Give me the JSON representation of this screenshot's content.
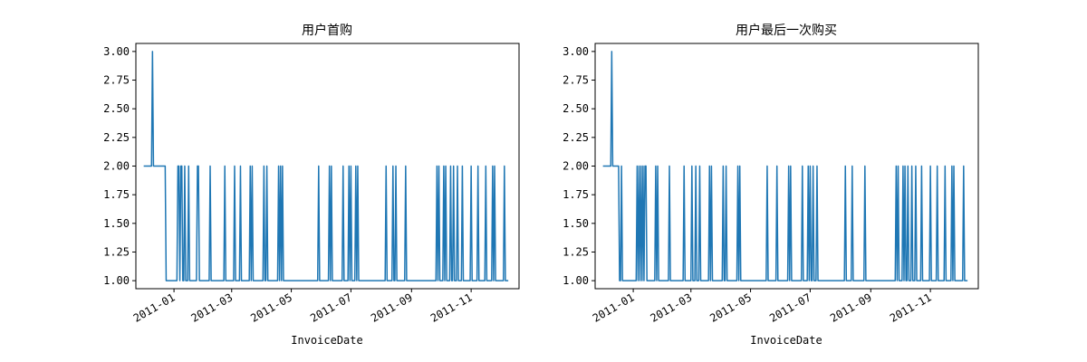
{
  "chart_data": [
    {
      "type": "line",
      "title": "用户首购",
      "xlabel": "InvoiceDate",
      "ylabel": "",
      "ylim": [
        0.93,
        3.07
      ],
      "xlim": [
        "2010-11-23",
        "2011-12-20"
      ],
      "yticks": [
        "1.00",
        "1.25",
        "1.50",
        "1.75",
        "2.00",
        "2.25",
        "2.50",
        "2.75",
        "3.00"
      ],
      "xticks": [
        "2011-01",
        "2011-03",
        "2011-05",
        "2011-07",
        "2011-09",
        "2011-11"
      ],
      "grid": false,
      "color": "#1f77b4",
      "series": [
        {
          "x": [
            "2010-12-01",
            "2010-12-02",
            "2010-12-03",
            "2010-12-04",
            "2010-12-05",
            "2010-12-06",
            "2010-12-07",
            "2010-12-08",
            "2010-12-09",
            "2010-12-10",
            "2010-12-11",
            "2010-12-12",
            "2010-12-13",
            "2010-12-14",
            "2010-12-15",
            "2010-12-16",
            "2010-12-17",
            "2010-12-18",
            "2010-12-19",
            "2010-12-20",
            "2010-12-21",
            "2010-12-22",
            "2010-12-23",
            "2011-01-05",
            "2011-01-06",
            "2011-01-08",
            "2011-01-09",
            "2011-01-12",
            "2011-01-16",
            "2011-01-25",
            "2011-01-26",
            "2011-02-07",
            "2011-02-22",
            "2011-03-04",
            "2011-03-10",
            "2011-03-20",
            "2011-03-22",
            "2011-04-03",
            "2011-04-06",
            "2011-04-18",
            "2011-04-20",
            "2011-04-22",
            "2011-05-29",
            "2011-06-09",
            "2011-06-11",
            "2011-06-23",
            "2011-06-29",
            "2011-07-01",
            "2011-07-06",
            "2011-07-08",
            "2011-08-06",
            "2011-08-13",
            "2011-08-16",
            "2011-08-26",
            "2011-09-27",
            "2011-09-29",
            "2011-10-04",
            "2011-10-06",
            "2011-10-11",
            "2011-10-14",
            "2011-10-18",
            "2011-10-23",
            "2011-11-01",
            "2011-11-08",
            "2011-11-16",
            "2011-11-23",
            "2011-11-25",
            "2011-12-05"
          ],
          "values": [
            2,
            2,
            2,
            2,
            2,
            2,
            2,
            2,
            2,
            3,
            2,
            2,
            2,
            2,
            2,
            2,
            2,
            2,
            2,
            2,
            2,
            2,
            2,
            2,
            2,
            2,
            2,
            2,
            2,
            2,
            2,
            2,
            2,
            2,
            2,
            2,
            2,
            2,
            2,
            2,
            2,
            2,
            2,
            2,
            2,
            2,
            2,
            2,
            2,
            2,
            2,
            2,
            2,
            2,
            2,
            2,
            2,
            2,
            2,
            2,
            2,
            2,
            2,
            2,
            2,
            2,
            2,
            2
          ],
          "baseline": 1,
          "range": [
            "2010-12-01",
            "2011-12-09"
          ]
        }
      ]
    },
    {
      "type": "line",
      "title": "用户最后一次购买",
      "xlabel": "InvoiceDate",
      "ylabel": "",
      "ylim": [
        0.93,
        3.07
      ],
      "xlim": [
        "2010-11-23",
        "2011-12-20"
      ],
      "yticks": [
        "1.00",
        "1.25",
        "1.50",
        "1.75",
        "2.00",
        "2.25",
        "2.50",
        "2.75",
        "3.00"
      ],
      "xticks": [
        "2011-01",
        "2011-03",
        "2011-05",
        "2011-07",
        "2011-09",
        "2011-11"
      ],
      "grid": false,
      "color": "#1f77b4",
      "series": [
        {
          "x": [
            "2010-12-01",
            "2010-12-02",
            "2010-12-03",
            "2010-12-04",
            "2010-12-05",
            "2010-12-06",
            "2010-12-07",
            "2010-12-08",
            "2010-12-09",
            "2010-12-10",
            "2010-12-11",
            "2010-12-12",
            "2010-12-13",
            "2010-12-14",
            "2010-12-15",
            "2010-12-16",
            "2010-12-17",
            "2010-12-20",
            "2011-01-05",
            "2011-01-07",
            "2011-01-09",
            "2011-01-11",
            "2011-01-13",
            "2011-01-14",
            "2011-01-24",
            "2011-01-26",
            "2011-02-07",
            "2011-02-22",
            "2011-03-02",
            "2011-03-06",
            "2011-03-10",
            "2011-03-20",
            "2011-03-22",
            "2011-04-03",
            "2011-04-06",
            "2011-04-18",
            "2011-04-20",
            "2011-05-18",
            "2011-05-28",
            "2011-06-09",
            "2011-06-11",
            "2011-06-23",
            "2011-06-29",
            "2011-07-01",
            "2011-07-04",
            "2011-07-08",
            "2011-08-06",
            "2011-08-13",
            "2011-08-26",
            "2011-09-27",
            "2011-09-29",
            "2011-10-04",
            "2011-10-06",
            "2011-10-09",
            "2011-10-13",
            "2011-10-17",
            "2011-10-23",
            "2011-11-01",
            "2011-11-08",
            "2011-11-16",
            "2011-11-23",
            "2011-11-25",
            "2011-12-05"
          ],
          "values": [
            2,
            2,
            2,
            2,
            2,
            2,
            2,
            2,
            2,
            3,
            2,
            2,
            2,
            2,
            2,
            2,
            2,
            2,
            2,
            2,
            2,
            2,
            2,
            2,
            2,
            2,
            2,
            2,
            2,
            2,
            2,
            2,
            2,
            2,
            2,
            2,
            2,
            2,
            2,
            2,
            2,
            2,
            2,
            2,
            2,
            2,
            2,
            2,
            2,
            2,
            2,
            2,
            2,
            2,
            2,
            2,
            2,
            2,
            2,
            2,
            2,
            2,
            2
          ],
          "baseline": 1,
          "range": [
            "2010-12-01",
            "2011-12-09"
          ]
        }
      ]
    }
  ]
}
